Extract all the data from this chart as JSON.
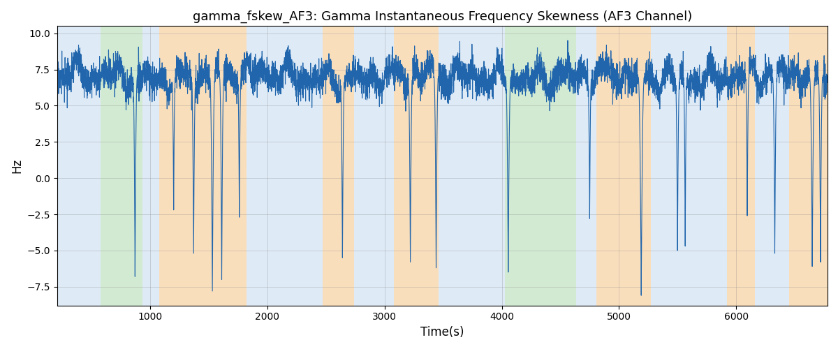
{
  "title": "gamma_fskew_AF3: Gamma Instantaneous Frequency Skewness (AF3 Channel)",
  "xlabel": "Time(s)",
  "ylabel": "Hz",
  "xlim": [
    205,
    6780
  ],
  "ylim": [
    -8.8,
    10.5
  ],
  "yticks": [
    -7.5,
    -5.0,
    -2.5,
    0.0,
    2.5,
    5.0,
    7.5,
    10.0
  ],
  "xticks": [
    1000,
    2000,
    3000,
    4000,
    5000,
    6000
  ],
  "line_color": "#2166ac",
  "line_width": 0.8,
  "bg_blue": {
    "color": "#c8ddf0",
    "alpha": 0.6
  },
  "bg_green": {
    "color": "#b5ddb5",
    "alpha": 0.6
  },
  "bg_orange": {
    "color": "#f5c990",
    "alpha": 0.6
  },
  "background_bands": [
    {
      "xmin": 205,
      "xmax": 575,
      "type": "blue"
    },
    {
      "xmin": 575,
      "xmax": 935,
      "type": "green"
    },
    {
      "xmin": 935,
      "xmax": 1075,
      "type": "blue"
    },
    {
      "xmin": 1075,
      "xmax": 1820,
      "type": "orange"
    },
    {
      "xmin": 1820,
      "xmax": 2090,
      "type": "blue"
    },
    {
      "xmin": 2090,
      "xmax": 2470,
      "type": "blue"
    },
    {
      "xmin": 2470,
      "xmax": 2740,
      "type": "orange"
    },
    {
      "xmin": 2740,
      "xmax": 3080,
      "type": "blue"
    },
    {
      "xmin": 3080,
      "xmax": 3460,
      "type": "orange"
    },
    {
      "xmin": 3460,
      "xmax": 4025,
      "type": "blue"
    },
    {
      "xmin": 4025,
      "xmax": 4635,
      "type": "green"
    },
    {
      "xmin": 4635,
      "xmax": 4810,
      "type": "blue"
    },
    {
      "xmin": 4810,
      "xmax": 5270,
      "type": "orange"
    },
    {
      "xmin": 5270,
      "xmax": 5920,
      "type": "blue"
    },
    {
      "xmin": 5920,
      "xmax": 6160,
      "type": "orange"
    },
    {
      "xmin": 6160,
      "xmax": 6450,
      "type": "blue"
    },
    {
      "xmin": 6450,
      "xmax": 6780,
      "type": "orange"
    }
  ],
  "seed": 17,
  "n_points": 6600,
  "t_start": 205,
  "t_end": 6775
}
